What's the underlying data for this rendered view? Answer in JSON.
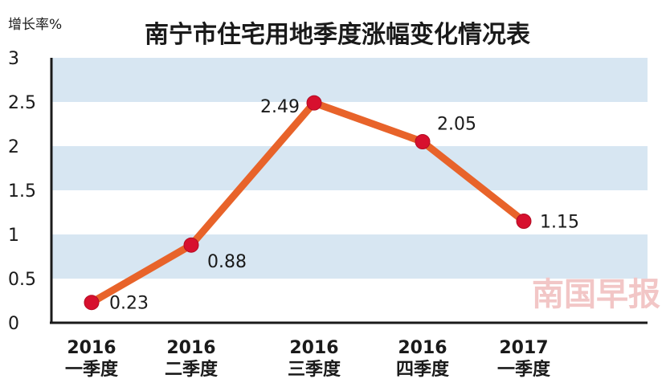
{
  "chart_data": {
    "type": "line",
    "title": "南宁市住宅用地季度涨幅变化情况表",
    "ylabel": "增长率%",
    "xlabel": "",
    "ylim": [
      0,
      3
    ],
    "yticks": [
      "0",
      "0.5",
      "1",
      "1.5",
      "2",
      "2.5",
      "3"
    ],
    "categories": [
      [
        "2016",
        "一季度"
      ],
      [
        "2016",
        "二季度"
      ],
      [
        "2016",
        "三季度"
      ],
      [
        "2016",
        "四季度"
      ],
      [
        "2017",
        "一季度"
      ]
    ],
    "series": [
      {
        "values": [
          0.23,
          0.88,
          2.49,
          2.05,
          1.15
        ],
        "labels": [
          "0.23",
          "0.88",
          "2.49",
          "2.05",
          "1.15"
        ]
      }
    ],
    "grid": "alternating horizontal bands",
    "colors": {
      "line": "#e8632a",
      "marker": "#d7102e",
      "band": "#d7e6f2"
    },
    "watermark": "南国早报"
  }
}
